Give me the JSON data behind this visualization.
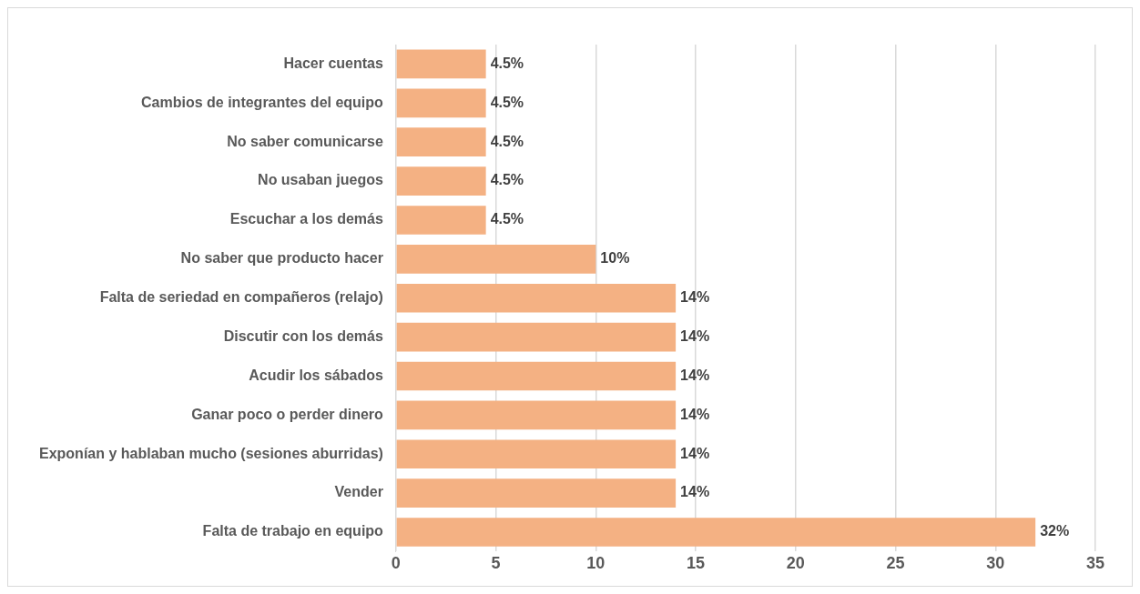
{
  "chart_data": {
    "type": "bar",
    "orientation": "horizontal",
    "categories": [
      "Hacer cuentas",
      "Cambios de integrantes del equipo",
      "No saber comunicarse",
      "No usaban juegos",
      "Escuchar a los demás",
      "No saber que producto hacer",
      "Falta de seriedad en compañeros (relajo)",
      "Discutir con los demás",
      "Acudir los sábados",
      "Ganar poco o perder dinero",
      "Exponían y hablaban mucho (sesiones aburridas)",
      "Vender",
      "Falta de trabajo en equipo"
    ],
    "values": [
      4.5,
      4.5,
      4.5,
      4.5,
      4.5,
      10,
      14,
      14,
      14,
      14,
      14,
      14,
      32
    ],
    "value_labels": [
      "4.5%",
      "4.5%",
      "4.5%",
      "4.5%",
      "4.5%",
      "10%",
      "14%",
      "14%",
      "14%",
      "14%",
      "14%",
      "14%",
      "32%"
    ],
    "color": "#f4b183",
    "xlim": [
      0,
      35
    ],
    "xticks": [
      0,
      5,
      10,
      15,
      20,
      25,
      30,
      35
    ],
    "grid": "x",
    "legend": false
  }
}
